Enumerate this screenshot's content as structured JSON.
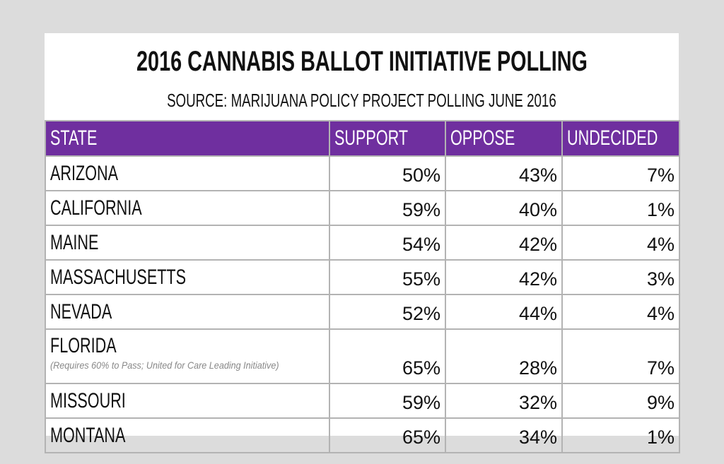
{
  "chart_data": {
    "type": "table",
    "title": "2016 CANNABIS BALLOT INITIATIVE POLLING",
    "subtitle": "SOURCE: MARIJUANA POLICY PROJECT POLLING JUNE 2016",
    "columns": [
      "STATE",
      "SUPPORT",
      "OPPOSE",
      "UNDECIDED"
    ],
    "rows": [
      {
        "state": "ARIZONA",
        "note": "",
        "support": "50%",
        "oppose": "43%",
        "undecided": "7%"
      },
      {
        "state": "CALIFORNIA",
        "note": "",
        "support": "59%",
        "oppose": "40%",
        "undecided": "1%"
      },
      {
        "state": "MAINE",
        "note": "",
        "support": "54%",
        "oppose": "42%",
        "undecided": "4%"
      },
      {
        "state": "MASSACHUSETTS",
        "note": "",
        "support": "55%",
        "oppose": "42%",
        "undecided": "3%"
      },
      {
        "state": "NEVADA",
        "note": "",
        "support": "52%",
        "oppose": "44%",
        "undecided": "4%"
      },
      {
        "state": "FLORIDA",
        "note": "(Requires 60% to Pass; United for Care Leading Initiative)",
        "support": "65%",
        "oppose": "28%",
        "undecided": "7%"
      },
      {
        "state": "MISSOURI",
        "note": "",
        "support": "59%",
        "oppose": "32%",
        "undecided": "9%"
      },
      {
        "state": "MONTANA",
        "note": "",
        "support": "65%",
        "oppose": "34%",
        "undecided": "1%"
      }
    ],
    "header_color": "#6f2f9f"
  }
}
